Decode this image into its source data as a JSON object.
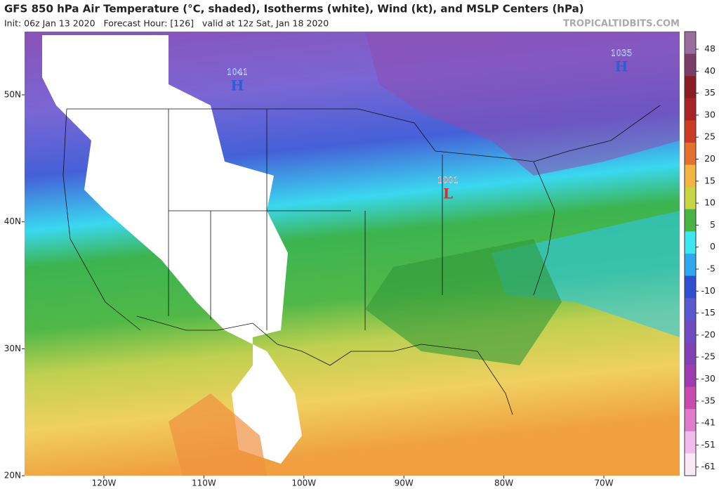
{
  "header": {
    "title": "GFS 850 hPa Air Temperature (°C, shaded), Isotherms (white), Wind (kt), and MSLP Centers (hPa)",
    "subtitle": "Init: 06z Jan 13 2020   Forecast Hour: [126]   valid at 12z Sat, Jan 18 2020",
    "site": "TROPICALTIDBITS.COM"
  },
  "map": {
    "lat_labels": [
      "50N",
      "40N",
      "30N",
      "20N"
    ],
    "lon_labels": [
      "120W",
      "110W",
      "100W",
      "90W",
      "80W",
      "70W"
    ],
    "pressure_centers": [
      {
        "value": 1041,
        "symbol": "H",
        "color": "#2a5fd8"
      },
      {
        "value": 1035,
        "symbol": "H",
        "color": "#2a5fd8"
      },
      {
        "value": 1001,
        "symbol": "L",
        "color": "#d03030"
      }
    ]
  },
  "colorbar": {
    "ticks": [
      48,
      40,
      35,
      30,
      25,
      20,
      15,
      10,
      5,
      0,
      -5,
      -10,
      -15,
      -20,
      -25,
      -30,
      -35,
      -41,
      -51,
      -61
    ],
    "colors": [
      "#9a6e9c",
      "#7a3f66",
      "#8a1d24",
      "#a82424",
      "#cc3c22",
      "#e4722e",
      "#f2b443",
      "#c8d440",
      "#48b444",
      "#3ee6f2",
      "#2fa8f0",
      "#2f4ed2",
      "#5a58d0",
      "#6e4cc0",
      "#8042b2",
      "#9c3cae",
      "#c84cb0",
      "#e07ccc",
      "#f0bcec",
      "#f8e8f8"
    ]
  }
}
